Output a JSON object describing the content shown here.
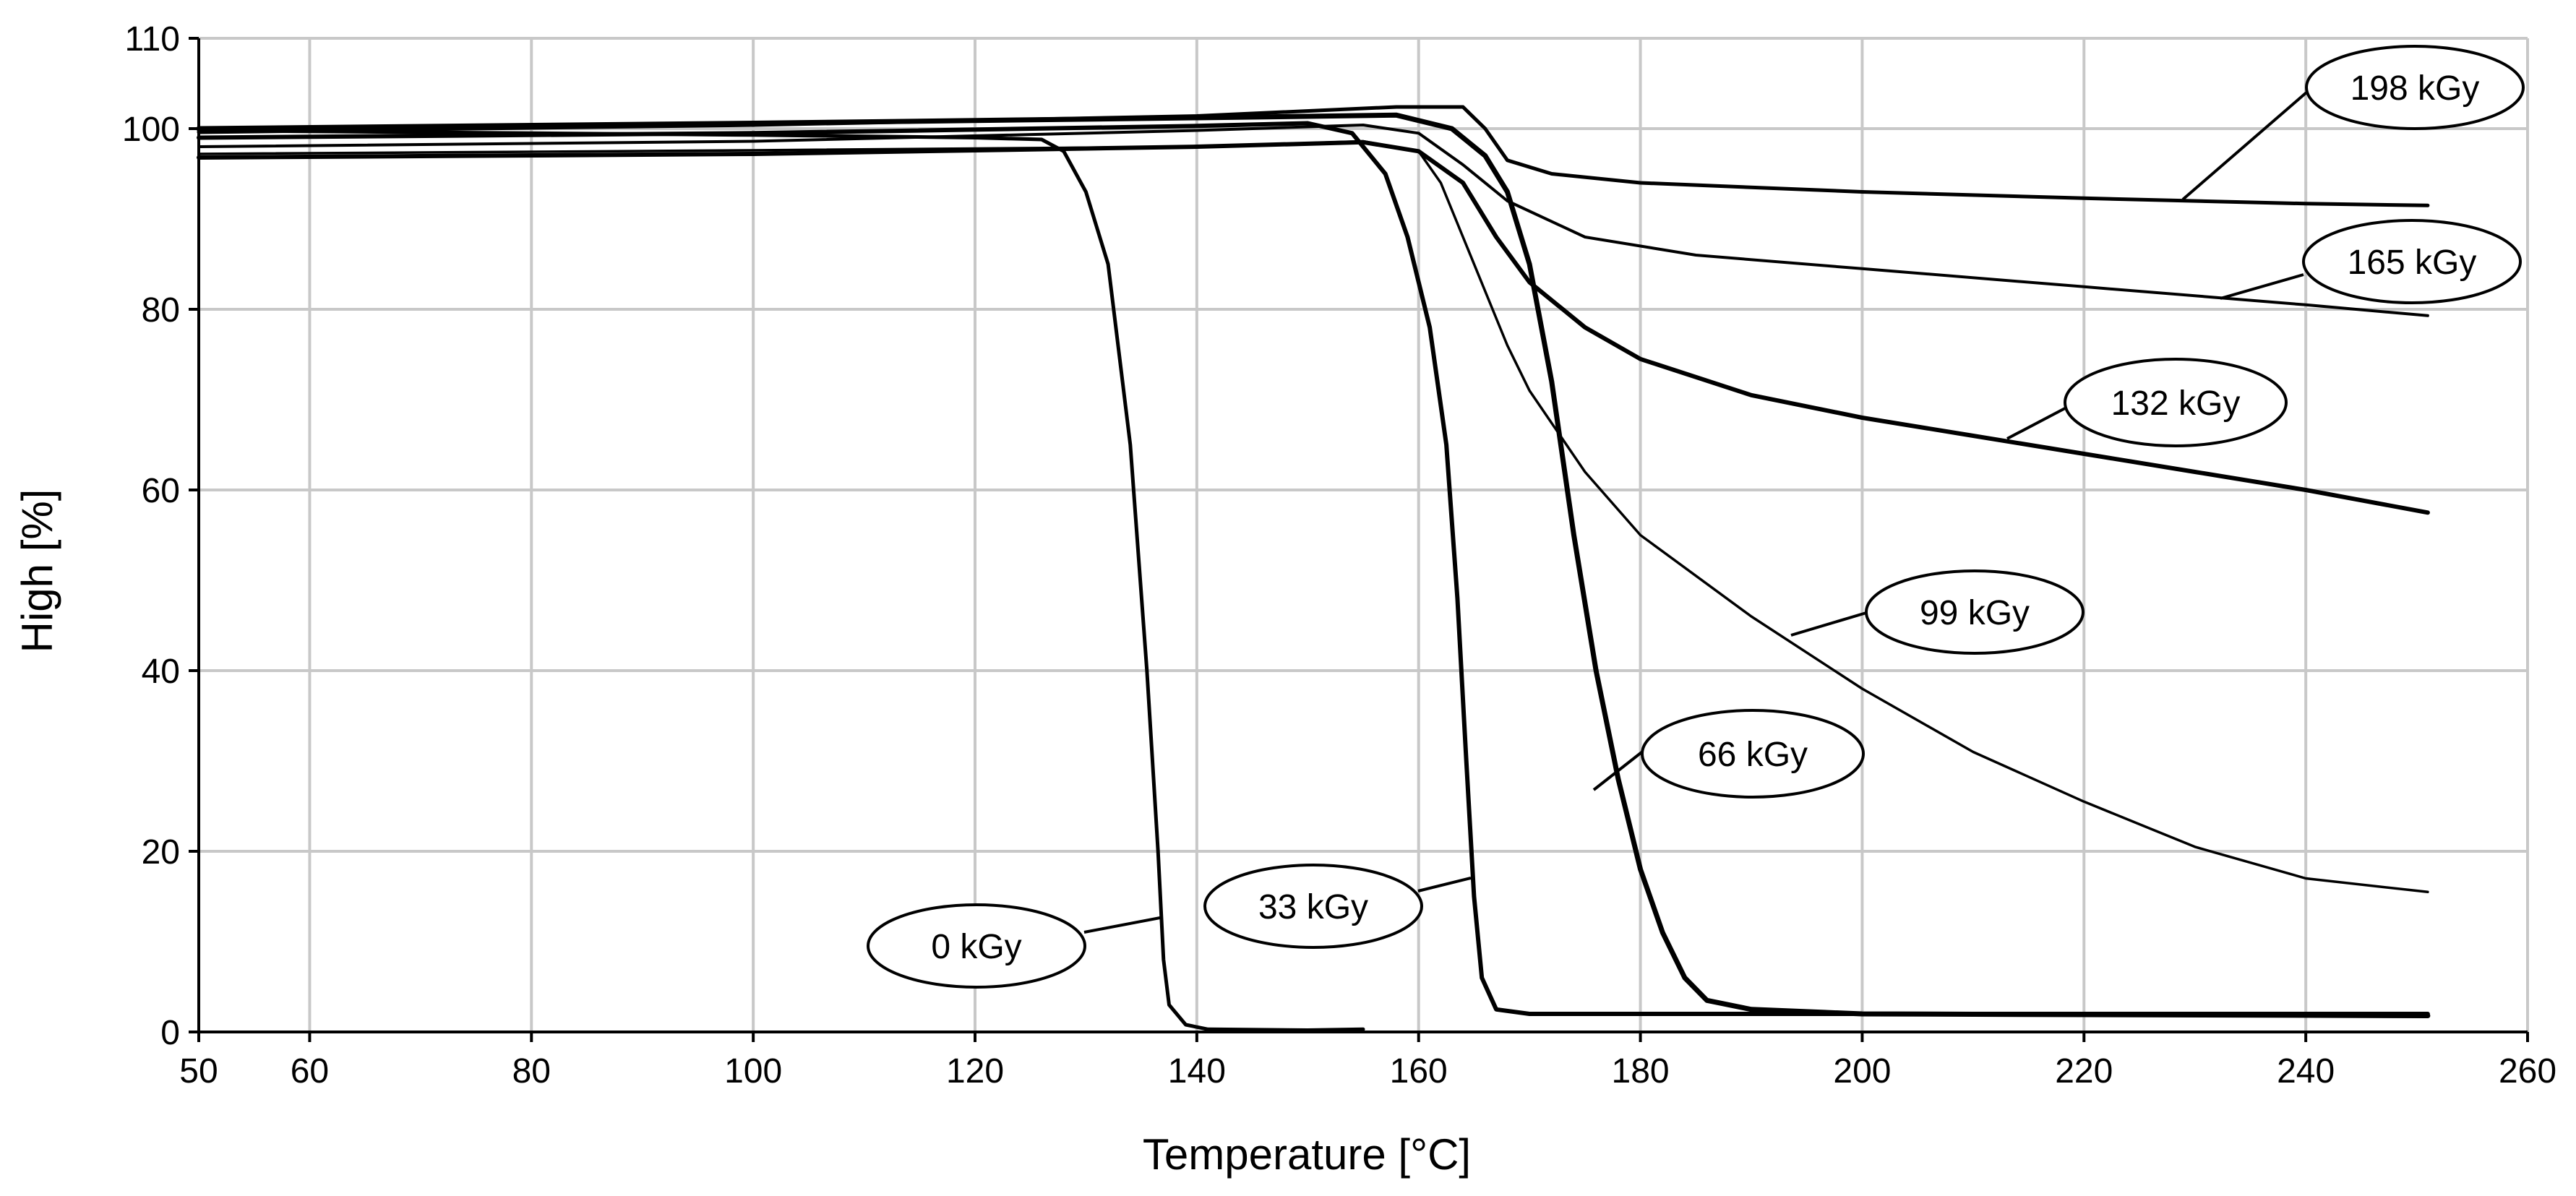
{
  "chart_data": {
    "type": "line",
    "title": "",
    "xlabel": "Temperature [°C]",
    "ylabel": "High [%]",
    "xlim": [
      50,
      260
    ],
    "ylim": [
      0,
      110
    ],
    "x_ticks": [
      50,
      60,
      80,
      100,
      120,
      140,
      160,
      180,
      200,
      220,
      240,
      260
    ],
    "y_ticks": [
      0,
      20,
      40,
      60,
      80,
      100,
      110
    ],
    "grid": true,
    "series": [
      {
        "name": "0 kGy",
        "points": [
          [
            50,
            99.8
          ],
          [
            80,
            99.5
          ],
          [
            100,
            99.3
          ],
          [
            120,
            99.0
          ],
          [
            126,
            98.8
          ],
          [
            128,
            97.5
          ],
          [
            130,
            93
          ],
          [
            132,
            85
          ],
          [
            134,
            65
          ],
          [
            135.5,
            40
          ],
          [
            136.5,
            20
          ],
          [
            137,
            8
          ],
          [
            137.5,
            3
          ],
          [
            139,
            0.8
          ],
          [
            141,
            0.3
          ],
          [
            150,
            0.2
          ],
          [
            155,
            0.3
          ]
        ]
      },
      {
        "name": "33 kGy",
        "points": [
          [
            50,
            99.0
          ],
          [
            100,
            99.5
          ],
          [
            140,
            100.3
          ],
          [
            150,
            100.6
          ],
          [
            154,
            99.5
          ],
          [
            157,
            95
          ],
          [
            159,
            88
          ],
          [
            161,
            78
          ],
          [
            162.5,
            65
          ],
          [
            163.5,
            48
          ],
          [
            164.3,
            30
          ],
          [
            165,
            15
          ],
          [
            165.7,
            6
          ],
          [
            167,
            2.5
          ],
          [
            170,
            2.0
          ],
          [
            200,
            2.0
          ],
          [
            251,
            2.0
          ]
        ]
      },
      {
        "name": "66 kGy",
        "points": [
          [
            50,
            100.0
          ],
          [
            100,
            100.6
          ],
          [
            140,
            101.2
          ],
          [
            158,
            101.5
          ],
          [
            163,
            100
          ],
          [
            166,
            97
          ],
          [
            168,
            93
          ],
          [
            170,
            85
          ],
          [
            172,
            72
          ],
          [
            174,
            55
          ],
          [
            176,
            40
          ],
          [
            178,
            28
          ],
          [
            180,
            18
          ],
          [
            182,
            11
          ],
          [
            184,
            6
          ],
          [
            186,
            3.5
          ],
          [
            190,
            2.5
          ],
          [
            200,
            2.0
          ],
          [
            251,
            1.8
          ]
        ]
      },
      {
        "name": "99 kGy",
        "points": [
          [
            50,
            97.2
          ],
          [
            100,
            97.6
          ],
          [
            140,
            98.0
          ],
          [
            155,
            98.6
          ],
          [
            160,
            97.5
          ],
          [
            162,
            94
          ],
          [
            164,
            88
          ],
          [
            166,
            82
          ],
          [
            168,
            76
          ],
          [
            170,
            71
          ],
          [
            175,
            62
          ],
          [
            180,
            55
          ],
          [
            190,
            46
          ],
          [
            200,
            38
          ],
          [
            210,
            31
          ],
          [
            220,
            25.5
          ],
          [
            230,
            20.5
          ],
          [
            240,
            17
          ],
          [
            251,
            15.5
          ]
        ]
      },
      {
        "name": "132 kGy",
        "points": [
          [
            50,
            96.8
          ],
          [
            100,
            97.2
          ],
          [
            140,
            98.0
          ],
          [
            155,
            98.5
          ],
          [
            160,
            97.5
          ],
          [
            164,
            94
          ],
          [
            167,
            88
          ],
          [
            170,
            83
          ],
          [
            175,
            78
          ],
          [
            180,
            74.5
          ],
          [
            190,
            70.5
          ],
          [
            200,
            68
          ],
          [
            210,
            66
          ],
          [
            220,
            64
          ],
          [
            230,
            62
          ],
          [
            240,
            60
          ],
          [
            251,
            57.5
          ]
        ]
      },
      {
        "name": "165 kGy",
        "points": [
          [
            50,
            98.0
          ],
          [
            100,
            98.6
          ],
          [
            140,
            99.8
          ],
          [
            155,
            100.4
          ],
          [
            160,
            99.5
          ],
          [
            164,
            96
          ],
          [
            168,
            92
          ],
          [
            175,
            88
          ],
          [
            185,
            86
          ],
          [
            200,
            84.5
          ],
          [
            220,
            82.5
          ],
          [
            240,
            80.5
          ],
          [
            251,
            79.3
          ]
        ]
      },
      {
        "name": "198 kGy",
        "points": [
          [
            50,
            99.6
          ],
          [
            100,
            100.4
          ],
          [
            140,
            101.4
          ],
          [
            158,
            102.4
          ],
          [
            164,
            102.4
          ],
          [
            166,
            100
          ],
          [
            168,
            96.5
          ],
          [
            172,
            95
          ],
          [
            180,
            94
          ],
          [
            200,
            93
          ],
          [
            220,
            92.3
          ],
          [
            240,
            91.7
          ],
          [
            251,
            91.5
          ]
        ]
      }
    ],
    "annotations": [
      {
        "text": "0 kGy",
        "series": "0 kGy"
      },
      {
        "text": "33 kGy",
        "series": "33 kGy"
      },
      {
        "text": "66 kGy",
        "series": "66 kGy"
      },
      {
        "text": "99 kGy",
        "series": "99 kGy"
      },
      {
        "text": "132 kGy",
        "series": "132 kGy"
      },
      {
        "text": "165 kGy",
        "series": "165 kGy"
      },
      {
        "text": "198 kGy",
        "series": "198 kGy"
      }
    ],
    "colors": {
      "line": "#000000",
      "grid": "#c8c8c8",
      "background": "#ffffff"
    }
  }
}
